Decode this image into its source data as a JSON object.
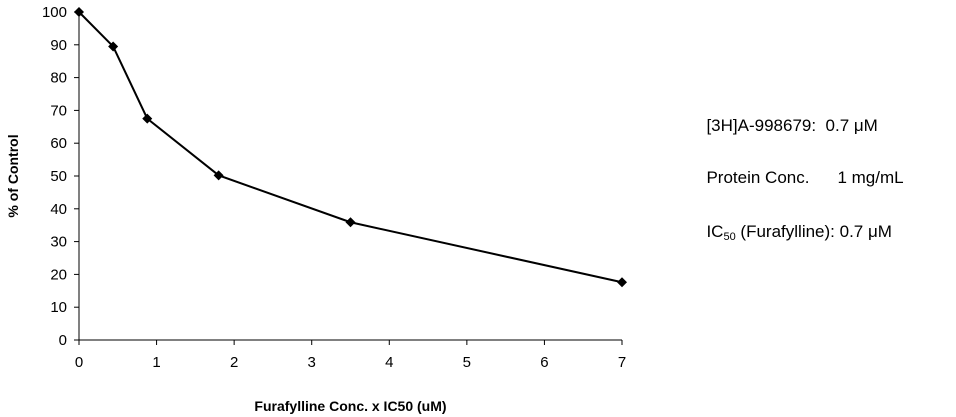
{
  "chart_data": {
    "type": "line",
    "xlabel": "Furafylline Conc. x IC50 (uM)",
    "ylabel": "% of Control",
    "xlim": [
      0,
      7
    ],
    "ylim": [
      0,
      100
    ],
    "x_ticks": [
      "0",
      "1",
      "2",
      "3",
      "4",
      "5",
      "6",
      "7"
    ],
    "y_ticks": [
      "0",
      "10",
      "20",
      "30",
      "40",
      "50",
      "60",
      "70",
      "80",
      "90",
      "100"
    ],
    "grid": false,
    "legend": false,
    "marker": "diamond",
    "color": "#000000",
    "x": [
      0,
      0.44,
      0.88,
      1.8,
      3.5,
      7
    ],
    "y": [
      100,
      89.5,
      67.5,
      50.2,
      35.9,
      17.6
    ]
  },
  "notes": {
    "radioligand": "[3H]A-998679:  0.7 μM",
    "protein_label": "Protein Conc.",
    "protein_value": "1 mg/mL",
    "ic50_prefix": "IC",
    "ic50_subscript": "50",
    "ic50_suffix": " (Furafylline): 0.7 μM"
  }
}
